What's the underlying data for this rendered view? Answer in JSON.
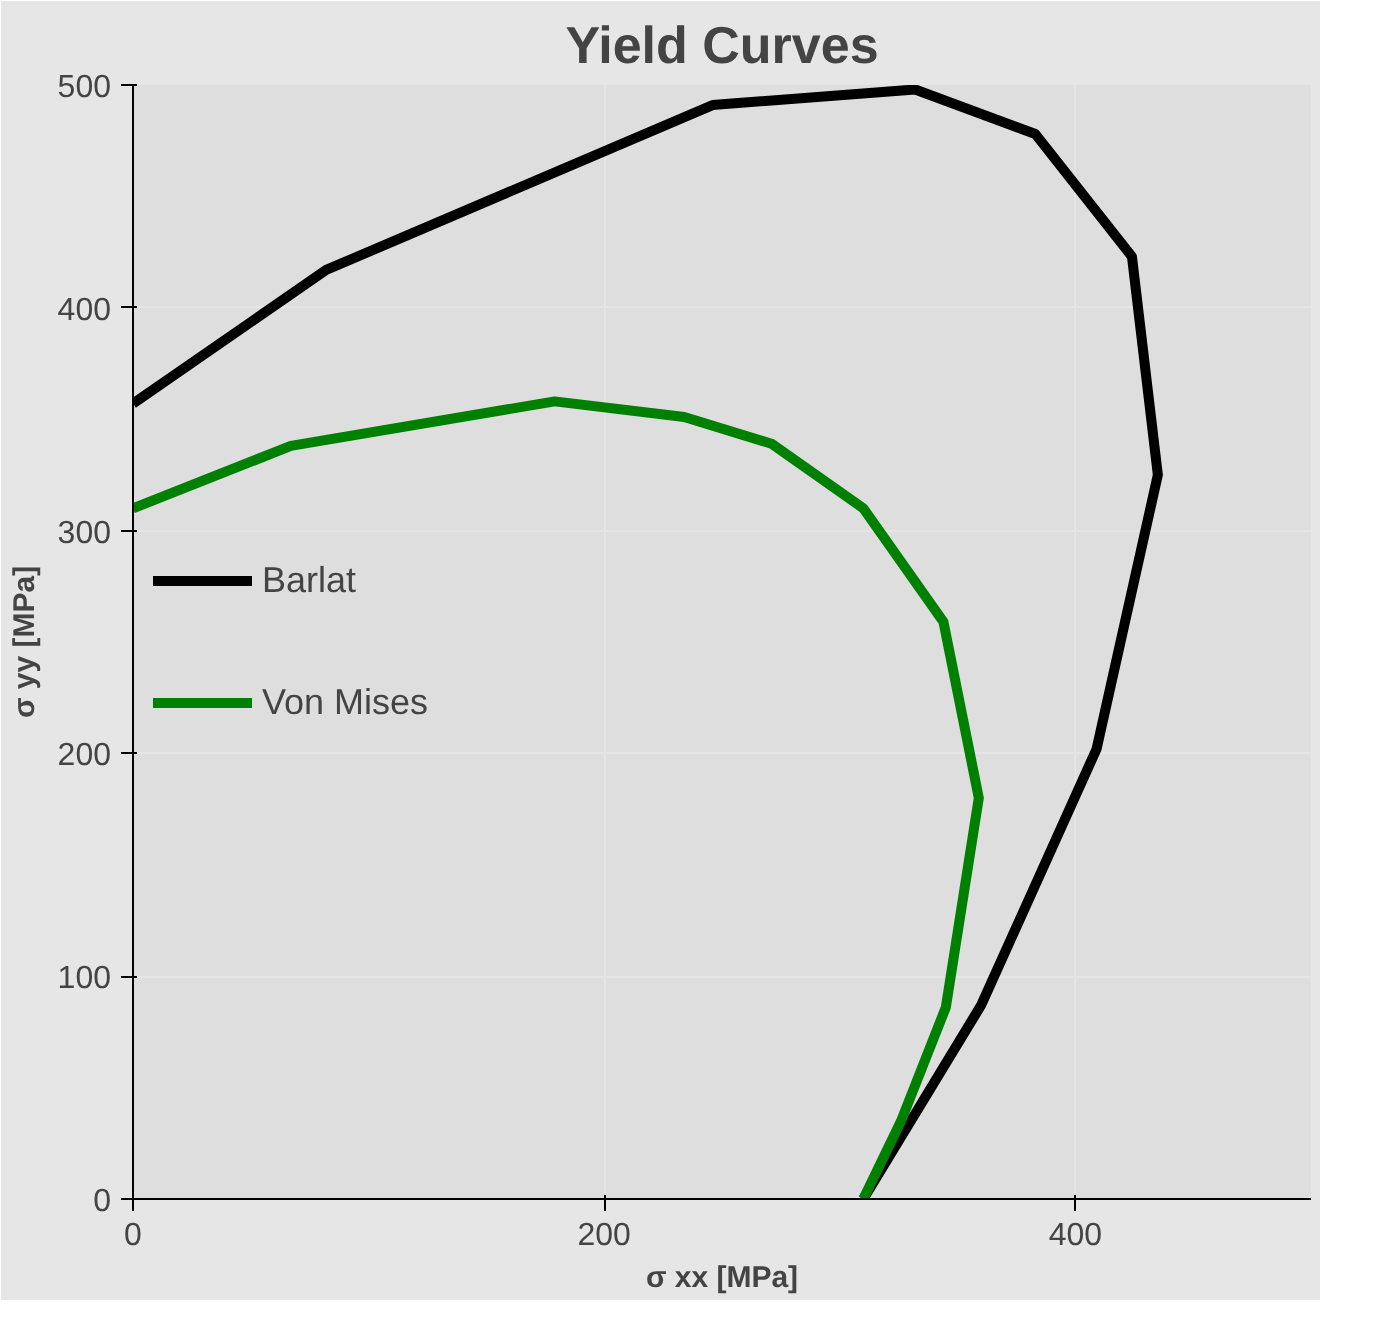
{
  "chart_data": {
    "type": "line",
    "title": "Yield Curves",
    "xlabel": "σ xx [MPa]",
    "ylabel": "σ yy [MPa]",
    "xlim": [
      0,
      500
    ],
    "ylim": [
      0,
      500
    ],
    "xticks": [
      0,
      200,
      400
    ],
    "yticks": [
      0,
      100,
      200,
      300,
      400,
      500
    ],
    "grid": true,
    "legend": "left",
    "marker": "none",
    "line_style": "solid",
    "series": [
      {
        "name": "Barlat",
        "color": "#000000",
        "x": [
          0,
          82,
          246,
          332,
          383,
          424,
          435,
          409,
          360,
          310
        ],
        "values": [
          357,
          417,
          491,
          498,
          478,
          423,
          325,
          202,
          87,
          0
        ]
      },
      {
        "name": "Von Mises",
        "color": "#008000",
        "x": [
          0,
          67,
          179,
          234,
          271,
          310,
          344,
          359,
          345,
          326,
          310
        ],
        "values": [
          310,
          338,
          358,
          351,
          339,
          310,
          259,
          180,
          86,
          35,
          0
        ]
      }
    ]
  }
}
